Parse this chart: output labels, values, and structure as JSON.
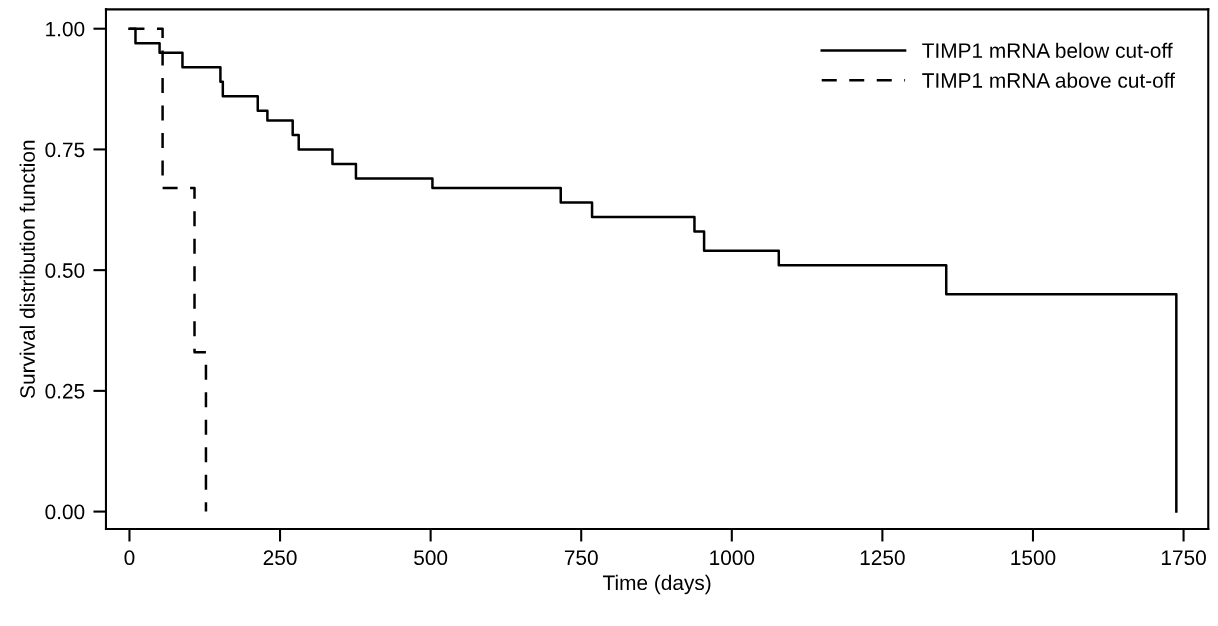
{
  "chart_data": {
    "type": "step",
    "xlabel": "Time (days)",
    "ylabel": "Survival distribution function",
    "xlim": [
      -39,
      1791
    ],
    "xticks": [
      0,
      250,
      500,
      750,
      1000,
      1250,
      1500,
      1750
    ],
    "ylim": [
      -0.036,
      1.04
    ],
    "yticks": [
      {
        "value": 0,
        "label": "0.00"
      },
      {
        "value": 0.25,
        "label": "0.25"
      },
      {
        "value": 0.5,
        "label": "0.50"
      },
      {
        "value": 0.75,
        "label": "0.75"
      },
      {
        "value": 1,
        "label": "1.00"
      }
    ],
    "grid": false,
    "legend": "top right",
    "series": [
      {
        "name": "TIMP1 mRNA below cut-off",
        "color": "#000000",
        "line_style": "solid",
        "x": [
          0,
          10,
          50,
          88,
          151,
          155,
          213,
          229,
          271,
          281,
          337,
          376,
          503,
          716,
          768,
          938,
          954,
          1078,
          1356,
          1738
        ],
        "values": [
          1.0,
          0.97,
          0.95,
          0.92,
          0.89,
          0.86,
          0.83,
          0.81,
          0.78,
          0.75,
          0.72,
          0.69,
          0.67,
          0.64,
          0.61,
          0.58,
          0.54,
          0.51,
          0.45,
          0.0
        ]
      },
      {
        "name": "TIMP1 mRNA above cut-off",
        "color": "#000000",
        "line_style": "dashed",
        "x": [
          0,
          55,
          108,
          127
        ],
        "values": [
          1.0,
          0.67,
          0.33,
          0.0
        ]
      }
    ]
  }
}
